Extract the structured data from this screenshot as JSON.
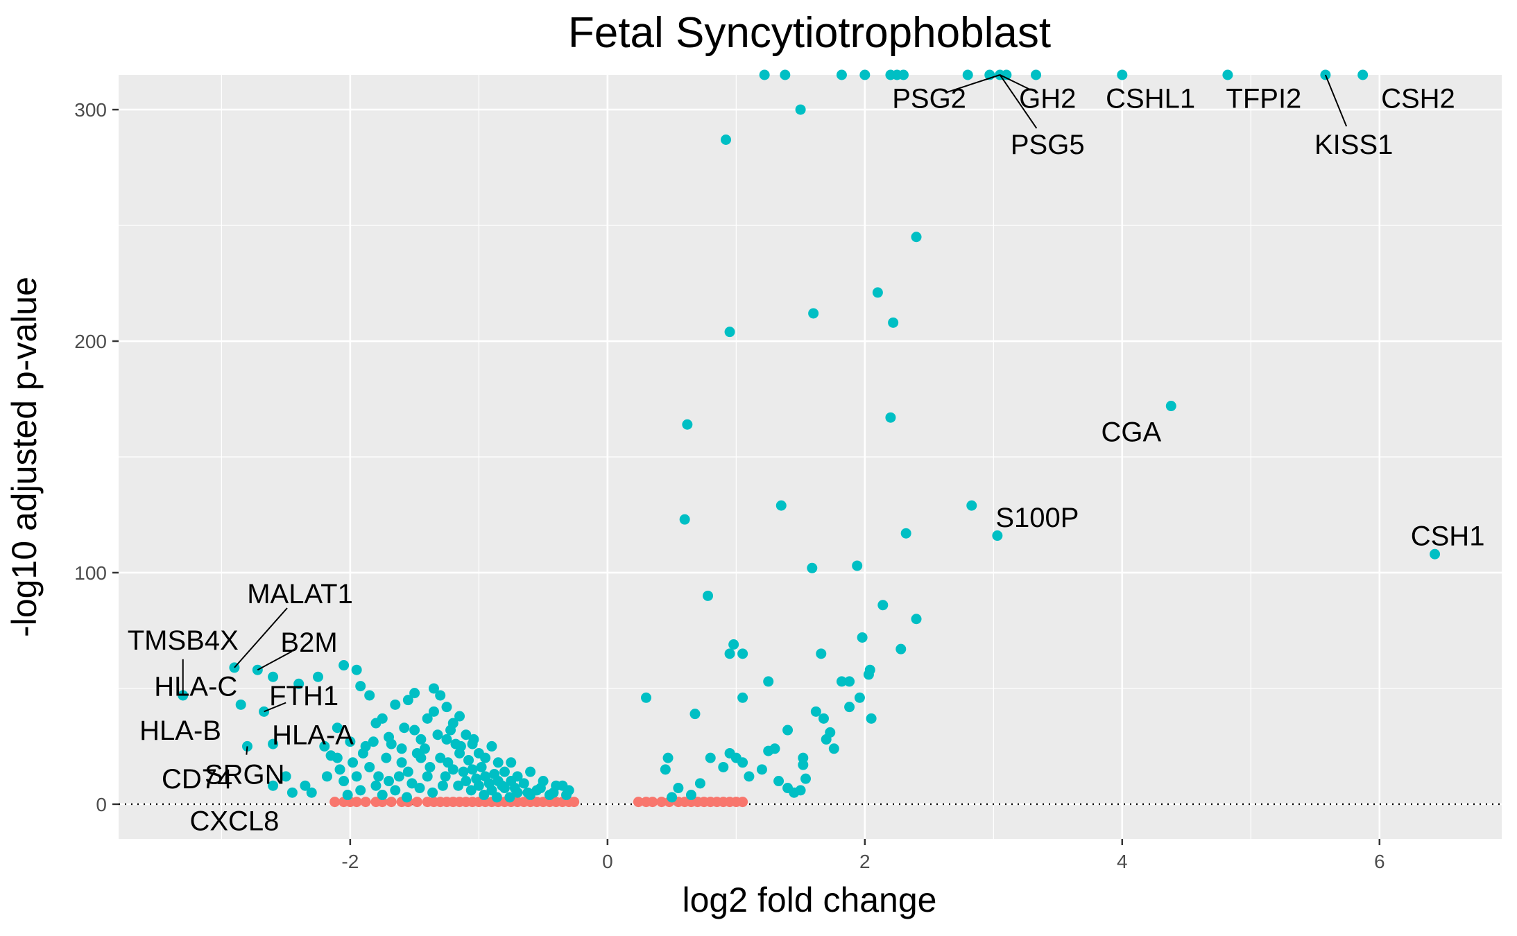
{
  "chart_data": {
    "type": "scatter",
    "title": "Fetal Syncytiotrophoblast",
    "xlabel": "log2 fold change",
    "ylabel": "-log10 adjusted p-value",
    "xlim": [
      -3.8,
      6.95
    ],
    "ylim": [
      -15,
      315
    ],
    "x_ticks": [
      -2,
      0,
      2,
      4,
      6
    ],
    "x_tick_labels": [
      "-2",
      "0",
      "2",
      "4",
      "6"
    ],
    "y_ticks": [
      0,
      100,
      200,
      300
    ],
    "y_tick_labels": [
      "0",
      "100",
      "200",
      "300"
    ],
    "grid": true,
    "reference_line": {
      "y": 0,
      "style": "dotted"
    },
    "colors": {
      "significant": "#00BFC4",
      "not_significant": "#F8766D",
      "panel": "#EBEBEB",
      "grid": "#FFFFFF"
    },
    "series": [
      {
        "key": "significant",
        "color": "#00BFC4",
        "points": [
          [
            1.22,
            315
          ],
          [
            1.38,
            315
          ],
          [
            1.82,
            315
          ],
          [
            2.0,
            315
          ],
          [
            2.2,
            315
          ],
          [
            2.3,
            315
          ],
          [
            2.25,
            315
          ],
          [
            2.8,
            315
          ],
          [
            2.97,
            315
          ],
          [
            3.05,
            315
          ],
          [
            3.1,
            315
          ],
          [
            3.33,
            315
          ],
          [
            4.0,
            315
          ],
          [
            4.82,
            315
          ],
          [
            5.58,
            315
          ],
          [
            5.87,
            315
          ],
          [
            1.5,
            300
          ],
          [
            0.92,
            287
          ],
          [
            2.4,
            245
          ],
          [
            2.1,
            221
          ],
          [
            1.6,
            212
          ],
          [
            2.22,
            208
          ],
          [
            0.95,
            204
          ],
          [
            4.38,
            172
          ],
          [
            0.62,
            164
          ],
          [
            2.2,
            167
          ],
          [
            1.35,
            129
          ],
          [
            0.6,
            123
          ],
          [
            2.32,
            117
          ],
          [
            2.83,
            129
          ],
          [
            3.03,
            116
          ],
          [
            6.43,
            108
          ],
          [
            1.59,
            102
          ],
          [
            1.94,
            103
          ],
          [
            0.78,
            90
          ],
          [
            2.14,
            86
          ],
          [
            2.4,
            80
          ],
          [
            0.98,
            69
          ],
          [
            1.05,
            65
          ],
          [
            0.95,
            65
          ],
          [
            1.66,
            65
          ],
          [
            2.28,
            67
          ],
          [
            1.98,
            72
          ],
          [
            2.04,
            58
          ],
          [
            2.03,
            56
          ],
          [
            1.25,
            53
          ],
          [
            1.82,
            53
          ],
          [
            1.88,
            53
          ],
          [
            1.05,
            46
          ],
          [
            0.3,
            46
          ],
          [
            1.96,
            46
          ],
          [
            1.88,
            42
          ],
          [
            1.68,
            37
          ],
          [
            1.62,
            40
          ],
          [
            0.68,
            39
          ],
          [
            2.05,
            37
          ],
          [
            1.4,
            32
          ],
          [
            1.73,
            31
          ],
          [
            1.7,
            28
          ],
          [
            1.76,
            24
          ],
          [
            1.3,
            24
          ],
          [
            1.25,
            23
          ],
          [
            0.95,
            22
          ],
          [
            1.0,
            20
          ],
          [
            0.8,
            20
          ],
          [
            0.47,
            20
          ],
          [
            0.45,
            15
          ],
          [
            1.52,
            20
          ],
          [
            1.52,
            17
          ],
          [
            1.54,
            11
          ],
          [
            1.33,
            10
          ],
          [
            1.4,
            7
          ],
          [
            1.45,
            5
          ],
          [
            1.5,
            6
          ],
          [
            0.72,
            9
          ],
          [
            0.55,
            7
          ],
          [
            1.1,
            12
          ],
          [
            1.2,
            15
          ],
          [
            0.9,
            16
          ],
          [
            1.05,
            18
          ],
          [
            0.65,
            4
          ],
          [
            0.5,
            3
          ],
          [
            -2.9,
            59
          ],
          [
            -2.72,
            58
          ],
          [
            -3.3,
            47
          ],
          [
            -2.67,
            40
          ],
          [
            -2.85,
            43
          ],
          [
            -2.05,
            60
          ],
          [
            -1.95,
            58
          ],
          [
            -1.92,
            51
          ],
          [
            -2.6,
            55
          ],
          [
            -2.4,
            52
          ],
          [
            -2.25,
            55
          ],
          [
            -2.1,
            33
          ],
          [
            -2.6,
            26
          ],
          [
            -2.8,
            25
          ],
          [
            -2.5,
            12
          ],
          [
            -2.45,
            5
          ],
          [
            -2.3,
            5
          ],
          [
            -2.2,
            25
          ],
          [
            -2.1,
            20
          ],
          [
            -2.0,
            27
          ],
          [
            -1.9,
            22
          ],
          [
            -1.8,
            35
          ],
          [
            -1.7,
            29
          ],
          [
            -1.6,
            24
          ],
          [
            -1.5,
            32
          ],
          [
            -1.45,
            28
          ],
          [
            -1.4,
            37
          ],
          [
            -1.35,
            40
          ],
          [
            -1.3,
            47
          ],
          [
            -1.25,
            42
          ],
          [
            -1.2,
            35
          ],
          [
            -1.15,
            38
          ],
          [
            -1.1,
            30
          ],
          [
            -1.05,
            26
          ],
          [
            -1.0,
            22
          ],
          [
            -0.95,
            20
          ],
          [
            -0.9,
            25
          ],
          [
            -0.85,
            18
          ],
          [
            -0.8,
            14
          ],
          [
            -0.75,
            18
          ],
          [
            -0.7,
            12
          ],
          [
            -0.6,
            14
          ],
          [
            -0.5,
            10
          ],
          [
            -0.4,
            8
          ],
          [
            -0.3,
            6
          ],
          [
            -1.85,
            47
          ],
          [
            -1.55,
            45
          ],
          [
            -1.65,
            43
          ],
          [
            -1.5,
            48
          ],
          [
            -1.75,
            37
          ],
          [
            -1.35,
            50
          ],
          [
            -2.05,
            10
          ],
          [
            -1.95,
            12
          ],
          [
            -1.8,
            8
          ],
          [
            -1.7,
            10
          ],
          [
            -1.6,
            18
          ],
          [
            -1.4,
            12
          ],
          [
            -1.3,
            20
          ],
          [
            -1.2,
            15
          ],
          [
            -1.1,
            10
          ],
          [
            -1.0,
            8
          ],
          [
            -0.9,
            6
          ],
          [
            -0.8,
            7
          ],
          [
            -0.7,
            5
          ],
          [
            -0.6,
            4
          ],
          [
            -0.55,
            6
          ],
          [
            -0.45,
            4
          ],
          [
            -1.25,
            28
          ],
          [
            -1.15,
            22
          ],
          [
            -1.05,
            15
          ],
          [
            -0.95,
            12
          ],
          [
            -0.85,
            10
          ],
          [
            -1.45,
            20
          ],
          [
            -1.55,
            14
          ],
          [
            -1.65,
            6
          ],
          [
            -1.75,
            4
          ],
          [
            -1.85,
            16
          ],
          [
            -2.15,
            21
          ],
          [
            -1.22,
            32
          ],
          [
            -1.18,
            26
          ],
          [
            -1.08,
            19
          ],
          [
            -0.98,
            16
          ],
          [
            -0.88,
            13
          ],
          [
            -1.28,
            8
          ],
          [
            -1.38,
            16
          ],
          [
            -1.48,
            22
          ],
          [
            -1.58,
            33
          ],
          [
            -1.68,
            26
          ],
          [
            -1.78,
            12
          ],
          [
            -1.88,
            25
          ],
          [
            -1.98,
            18
          ],
          [
            -2.08,
            15
          ],
          [
            -2.18,
            12
          ],
          [
            -2.6,
            8
          ],
          [
            -2.35,
            8
          ],
          [
            -1.12,
            14
          ],
          [
            -1.02,
            11
          ],
          [
            -0.92,
            9
          ],
          [
            -0.82,
            8
          ],
          [
            -0.72,
            7
          ],
          [
            -0.62,
            5
          ],
          [
            -0.52,
            7
          ],
          [
            -0.42,
            5
          ],
          [
            -0.32,
            4
          ],
          [
            -0.35,
            8
          ],
          [
            -0.65,
            9
          ],
          [
            -0.75,
            10
          ],
          [
            -1.24,
            18
          ],
          [
            -1.14,
            25
          ],
          [
            -1.04,
            28
          ],
          [
            -1.32,
            30
          ],
          [
            -1.42,
            24
          ],
          [
            -1.52,
            9
          ],
          [
            -1.62,
            12
          ],
          [
            -1.72,
            20
          ],
          [
            -1.82,
            27
          ],
          [
            -1.92,
            6
          ],
          [
            -2.02,
            4
          ],
          [
            -1.26,
            12
          ],
          [
            -1.16,
            8
          ],
          [
            -1.06,
            6
          ],
          [
            -0.96,
            4
          ],
          [
            -0.86,
            3
          ],
          [
            -0.76,
            3
          ],
          [
            -1.36,
            5
          ],
          [
            -1.46,
            7
          ],
          [
            -1.56,
            3
          ]
        ]
      },
      {
        "key": "not_significant",
        "color": "#F8766D",
        "points": [
          [
            -2.12,
            1
          ],
          [
            -2.05,
            1
          ],
          [
            -2.0,
            1
          ],
          [
            -1.95,
            1
          ],
          [
            -1.88,
            1
          ],
          [
            -1.8,
            1
          ],
          [
            -1.75,
            1
          ],
          [
            -1.68,
            1
          ],
          [
            -1.6,
            1
          ],
          [
            -1.55,
            1
          ],
          [
            -1.48,
            1
          ],
          [
            -1.4,
            1
          ],
          [
            -1.35,
            1
          ],
          [
            -1.3,
            1
          ],
          [
            -1.25,
            1
          ],
          [
            -1.2,
            1
          ],
          [
            -1.15,
            1
          ],
          [
            -1.1,
            1
          ],
          [
            -1.05,
            1
          ],
          [
            -1.0,
            1
          ],
          [
            -0.95,
            1
          ],
          [
            -0.9,
            1
          ],
          [
            -0.85,
            1
          ],
          [
            -0.8,
            1
          ],
          [
            -0.75,
            1
          ],
          [
            -0.7,
            1
          ],
          [
            -0.65,
            1
          ],
          [
            -0.6,
            1
          ],
          [
            -0.55,
            1
          ],
          [
            -0.5,
            1
          ],
          [
            -0.45,
            1
          ],
          [
            -0.4,
            1
          ],
          [
            -0.35,
            1
          ],
          [
            -0.3,
            1
          ],
          [
            -0.26,
            1
          ],
          [
            0.24,
            1
          ],
          [
            0.3,
            1
          ],
          [
            0.35,
            1
          ],
          [
            0.42,
            1
          ],
          [
            0.48,
            1
          ],
          [
            0.55,
            1
          ],
          [
            0.6,
            1
          ],
          [
            0.65,
            1
          ],
          [
            0.7,
            1
          ],
          [
            0.75,
            1
          ],
          [
            0.8,
            1
          ],
          [
            0.85,
            1
          ],
          [
            0.9,
            1
          ],
          [
            0.95,
            1
          ],
          [
            1.0,
            1
          ],
          [
            1.05,
            1
          ]
        ]
      }
    ],
    "annotations": [
      {
        "text": "PSG2",
        "x": 3.05,
        "y": 315,
        "label_at": [
          2.5,
          305
        ],
        "leader": true
      },
      {
        "text": "GH2",
        "x": 3.05,
        "y": 315,
        "label_at": [
          3.42,
          305
        ],
        "leader": true
      },
      {
        "text": "PSG5",
        "x": 3.05,
        "y": 315,
        "label_at": [
          3.42,
          285
        ],
        "leader": true
      },
      {
        "text": "CSHL1",
        "x": 4.0,
        "y": 315,
        "label_at": [
          4.22,
          305
        ],
        "leader": false
      },
      {
        "text": "TFPI2",
        "x": 4.82,
        "y": 315,
        "label_at": [
          5.1,
          305
        ],
        "leader": false
      },
      {
        "text": "CSH2",
        "x": 5.87,
        "y": 315,
        "label_at": [
          6.3,
          305
        ],
        "leader": false
      },
      {
        "text": "KISS1",
        "x": 5.58,
        "y": 315,
        "label_at": [
          5.8,
          285
        ],
        "leader": true
      },
      {
        "text": "CGA",
        "x": 4.38,
        "y": 172,
        "label_at": [
          4.07,
          161
        ],
        "leader": false
      },
      {
        "text": "S100P",
        "x": 3.03,
        "y": 116,
        "label_at": [
          3.34,
          124
        ],
        "leader": false
      },
      {
        "text": "CSH1",
        "x": 6.43,
        "y": 108,
        "label_at": [
          6.53,
          116
        ],
        "leader": false
      },
      {
        "text": "MALAT1",
        "x": -2.9,
        "y": 59,
        "label_at": [
          -2.39,
          91
        ],
        "leader": true
      },
      {
        "text": "TMSB4X",
        "x": -3.3,
        "y": 47,
        "label_at": [
          -3.3,
          71
        ],
        "leader": true
      },
      {
        "text": "B2M",
        "x": -2.72,
        "y": 58,
        "label_at": [
          -2.32,
          70
        ],
        "leader": true
      },
      {
        "text": "HLA-C",
        "x": -2.85,
        "y": 43,
        "label_at": [
          -3.2,
          51
        ],
        "leader": false
      },
      {
        "text": "FTH1",
        "x": -2.67,
        "y": 40,
        "label_at": [
          -2.36,
          47
        ],
        "leader": true
      },
      {
        "text": "HLA-B",
        "x": -2.8,
        "y": 25,
        "label_at": [
          -3.32,
          32
        ],
        "leader": false
      },
      {
        "text": "HLA-A",
        "x": -2.6,
        "y": 26,
        "label_at": [
          -2.29,
          30
        ],
        "leader": false
      },
      {
        "text": "SRGN",
        "x": -2.8,
        "y": 25,
        "label_at": [
          -2.82,
          13
        ],
        "leader": true
      },
      {
        "text": "CD74",
        "x": -2.8,
        "y": 25,
        "label_at": [
          -3.19,
          11
        ],
        "leader": false
      },
      {
        "text": "CXCL8",
        "x": -2.5,
        "y": 5,
        "label_at": [
          -2.9,
          -7
        ],
        "leader": false
      }
    ]
  }
}
